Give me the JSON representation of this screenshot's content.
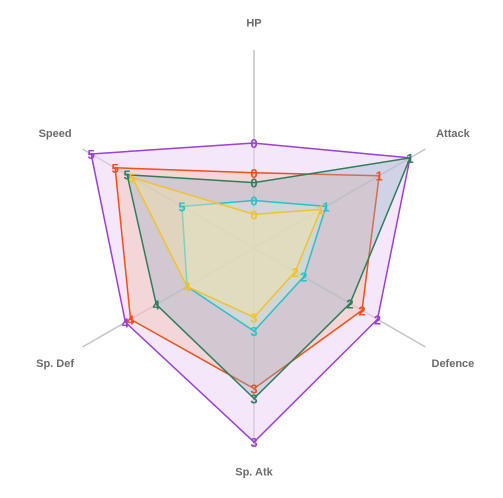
{
  "chart_data": {
    "type": "radar",
    "axes": [
      "HP",
      "Attack",
      "Defence",
      "Sp. Atk",
      "Sp. Def",
      "Speed"
    ],
    "rlim": [
      0,
      1
    ],
    "grid": false,
    "legend": "none",
    "series": [
      {
        "color": "#9b3fd6",
        "fill": "#e7cff4",
        "fill_opacity": 0.5,
        "values": [
          0.53,
          0.91,
          0.72,
          0.98,
          0.75,
          0.95
        ],
        "labels": [
          "0",
          "1",
          "2",
          "3",
          "4",
          "5"
        ]
      },
      {
        "color": "#ef4f1a",
        "fill": "#f5b79e",
        "fill_opacity": 0.35,
        "values": [
          0.38,
          0.73,
          0.63,
          0.71,
          0.72,
          0.81
        ],
        "labels": [
          "0",
          "1",
          "2",
          "3",
          "4",
          "5"
        ]
      },
      {
        "color": "#2f7d5a",
        "fill": "#8fb0c4",
        "fill_opacity": 0.35,
        "values": [
          0.33,
          0.91,
          0.56,
          0.76,
          0.57,
          0.74
        ],
        "labels": [
          "0",
          "1",
          "2",
          "3",
          "4",
          "5"
        ]
      },
      {
        "color": "#2bc0cc",
        "fill": "#cfe8d8",
        "fill_opacity": 0.45,
        "values": [
          0.24,
          0.42,
          0.29,
          0.42,
          0.39,
          0.42
        ],
        "labels": [
          "0",
          "1",
          "2",
          "3",
          "4",
          "5"
        ]
      },
      {
        "color": "#f2c12e",
        "fill": "#f3e3a8",
        "fill_opacity": 0.45,
        "values": [
          0.17,
          0.39,
          0.24,
          0.35,
          0.39,
          0.71
        ],
        "labels": [
          "0",
          "1",
          "2",
          "3",
          "4",
          "5"
        ]
      }
    ]
  }
}
